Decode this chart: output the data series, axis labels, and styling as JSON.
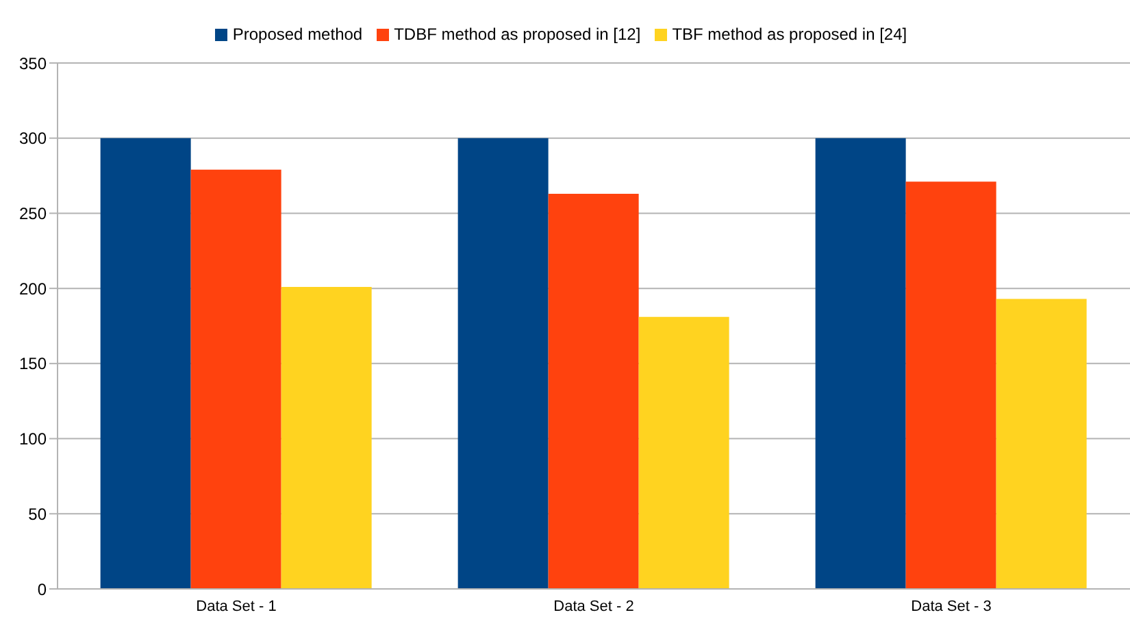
{
  "chart_data": {
    "type": "bar",
    "categories": [
      "Data Set - 1",
      "Data Set - 2",
      "Data Set - 3"
    ],
    "series": [
      {
        "name": "Proposed method",
        "color": "#004586",
        "values": [
          300,
          300,
          300
        ]
      },
      {
        "name": "TDBF method as proposed in [12]",
        "color": "#ff420e",
        "values": [
          279,
          263,
          271
        ]
      },
      {
        "name": "TBF method as proposed in [24]",
        "color": "#ffd320",
        "values": [
          201,
          181,
          193
        ]
      }
    ],
    "ylim": [
      0,
      350
    ],
    "yticks": [
      0,
      50,
      100,
      150,
      200,
      250,
      300,
      350
    ],
    "grid": "y",
    "legend": "top"
  }
}
